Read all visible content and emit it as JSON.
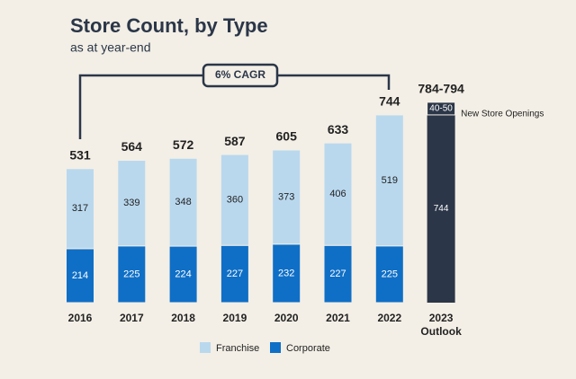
{
  "chart_data": {
    "type": "stacked_bar",
    "title": "Store Count, by Type",
    "subtitle": "as at year-end",
    "annotation": "6% CAGR",
    "categories": [
      "2016",
      "2017",
      "2018",
      "2019",
      "2020",
      "2021",
      "2022"
    ],
    "series": [
      {
        "name": "Corporate",
        "color": "#0f6fc6",
        "values": [
          214,
          225,
          224,
          227,
          232,
          227,
          225
        ]
      },
      {
        "name": "Franchise",
        "color": "#b9d8ee",
        "values": [
          317,
          339,
          348,
          360,
          373,
          406,
          519
        ]
      }
    ],
    "totals": [
      531,
      564,
      572,
      587,
      605,
      633,
      744
    ],
    "outlook": {
      "category": "2023",
      "sublabel": "Outlook",
      "base": 744,
      "base_color": "#2b3648",
      "new_openings": {
        "values": [
          40,
          50
        ],
        "label": "40-50",
        "note": "New Store Openings"
      },
      "total_label": "784-794"
    }
  }
}
